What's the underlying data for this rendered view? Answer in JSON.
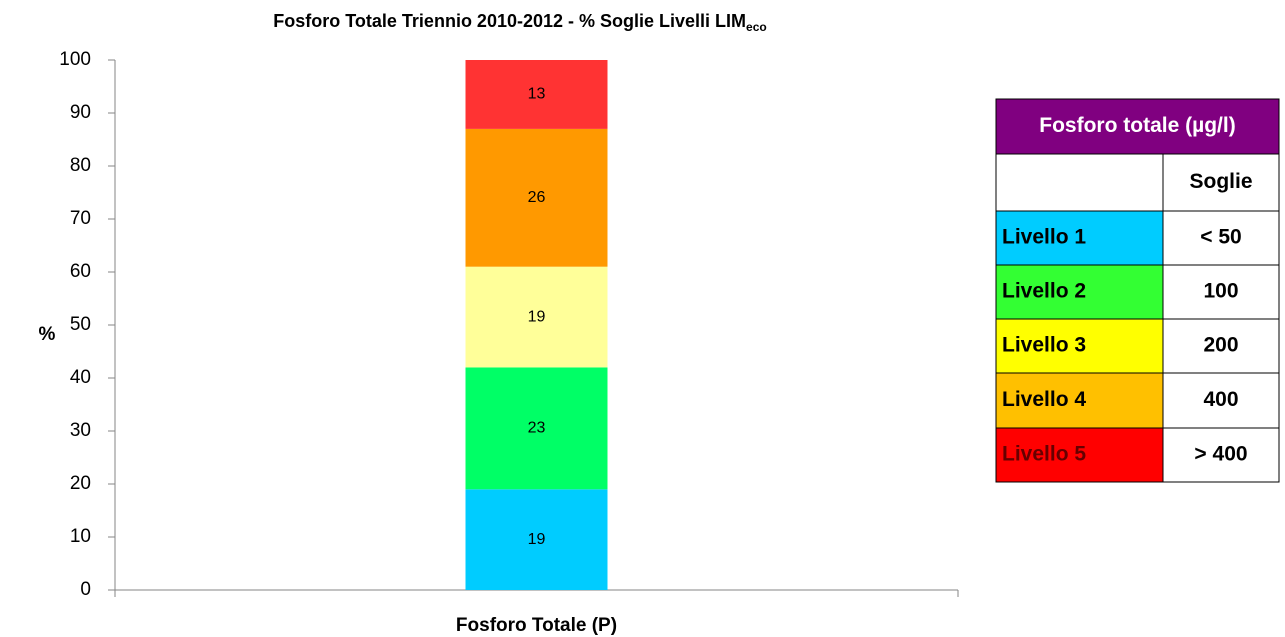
{
  "chart_data": {
    "type": "stacked_bar",
    "title": "Fosforo Totale Triennio 2010-2012 - % Soglie Livelli LIM",
    "title_subscript": "eco",
    "y_label": "%",
    "categories": [
      "Fosforo Totale (P)"
    ],
    "series": [
      {
        "color": "#00ccff",
        "values": [
          19
        ]
      },
      {
        "color": "#00ff66",
        "values": [
          23
        ]
      },
      {
        "color": "#ffff99",
        "values": [
          19
        ]
      },
      {
        "color": "#ff9900",
        "values": [
          26
        ]
      },
      {
        "color": "#ff3333",
        "values": [
          13
        ]
      }
    ],
    "ylim": [
      0,
      100
    ],
    "yticks": [
      0,
      10,
      20,
      30,
      40,
      50,
      60,
      70,
      80,
      90,
      100
    ]
  },
  "table": {
    "title": "Fosforo totale (µg/l)",
    "title_color": "#800080",
    "header": "Soglie",
    "rows": [
      [
        "Livello 1",
        "< 50"
      ],
      [
        "Livello 2",
        "100"
      ],
      [
        "Livello 3",
        "200"
      ],
      [
        "Livello 4",
        "400"
      ],
      [
        "Livello 5",
        "> 400"
      ]
    ],
    "row_colors": [
      "#00ccff",
      "#33ff33",
      "#ffff00",
      "#ffc000",
      "#ff0000"
    ]
  }
}
